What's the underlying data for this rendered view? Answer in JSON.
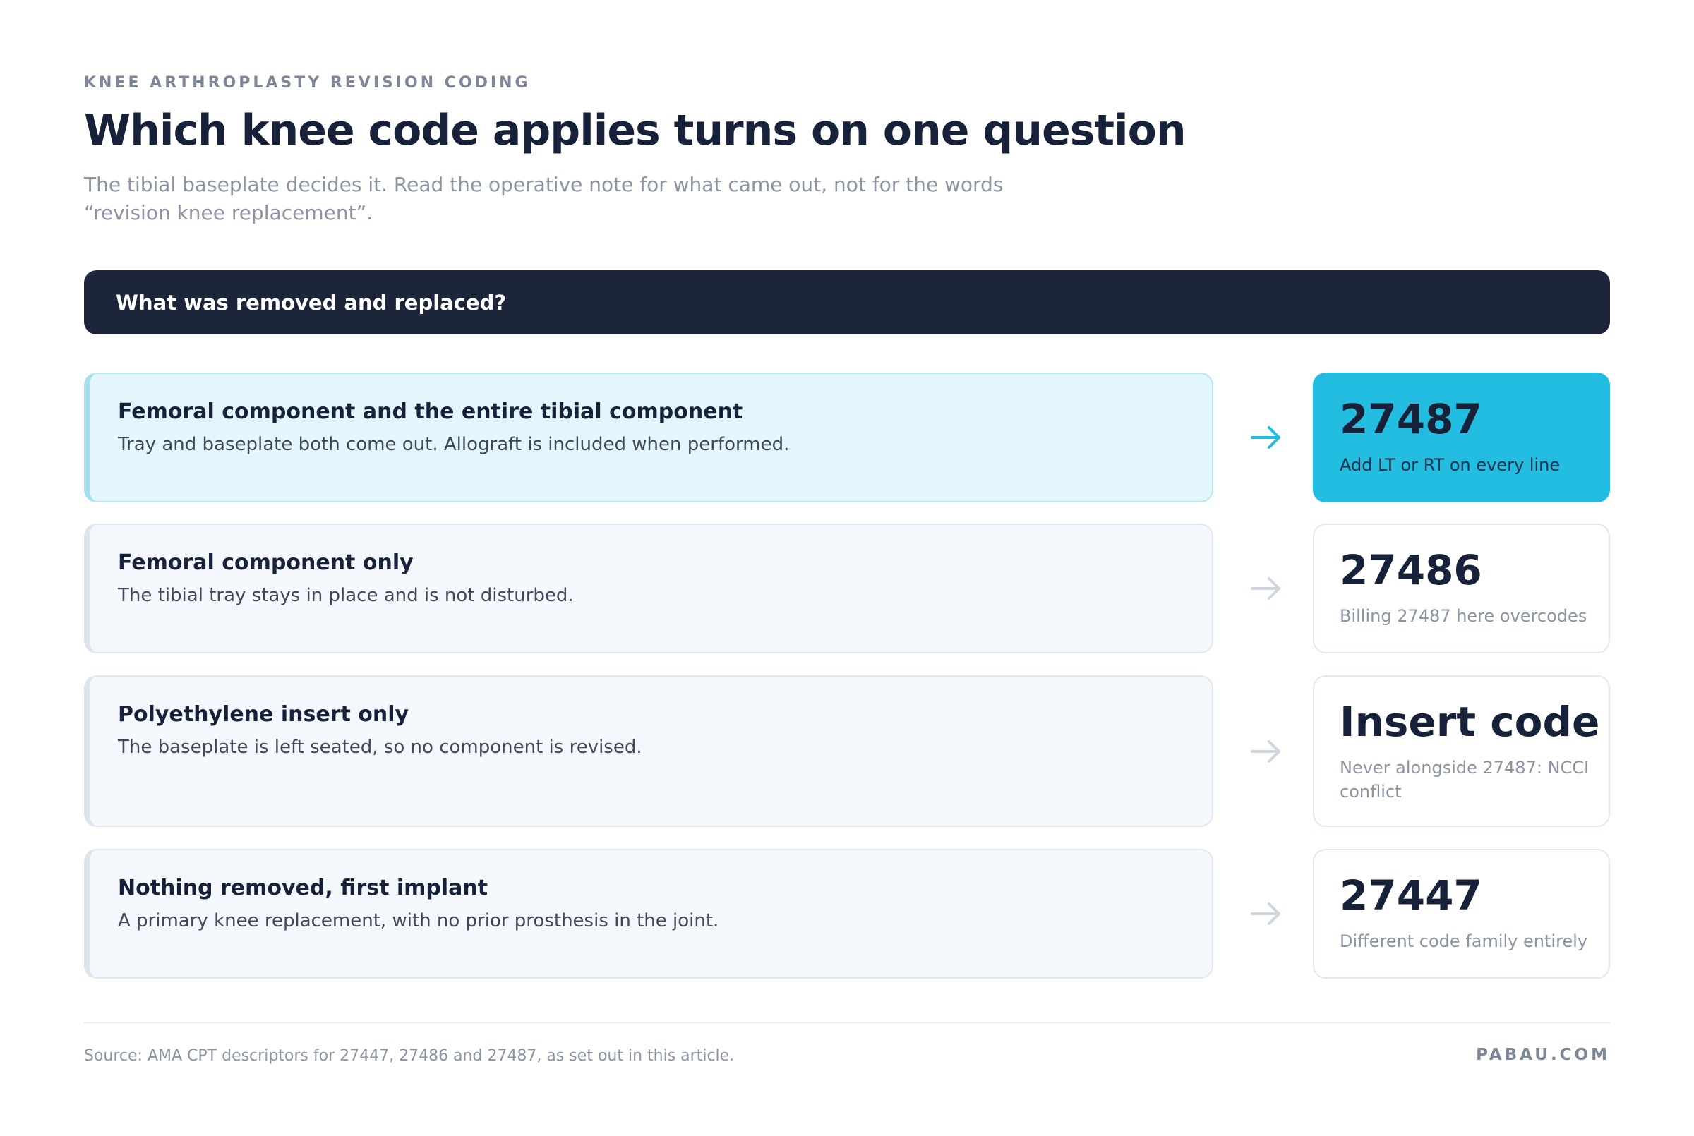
{
  "header": {
    "eyebrow": "KNEE ARTHROPLASTY REVISION CODING",
    "title": "Which knee code applies turns on one question",
    "subtitle": "The tibial baseplate decides it. Read the operative note for what came out, not for the words “revision knee replacement”."
  },
  "question": "What was removed and replaced?",
  "rows": [
    {
      "title": "Femoral component and the entire tibial component",
      "description": "Tray and baseplate both come out. Allograft is included when performed.",
      "code": "27487",
      "note": "Add LT or RT on every line"
    },
    {
      "title": "Femoral component only",
      "description": "The tibial tray stays in place and is not disturbed.",
      "code": "27486",
      "note": "Billing 27487 here overcodes"
    },
    {
      "title": "Polyethylene insert only",
      "description": "The baseplate is left seated, so no component is revised.",
      "code": "Insert code",
      "note": "Never alongside 27487: NCCI conflict"
    },
    {
      "title": "Nothing removed, first implant",
      "description": "A primary knee replacement, with no prior prosthesis in the joint.",
      "code": "27447",
      "note": "Different code family entirely"
    }
  ],
  "footer": {
    "source": "Source: AMA CPT descriptors for 27447, 27486 and 27487, as set out in this article.",
    "brand": "PABAU.COM"
  }
}
